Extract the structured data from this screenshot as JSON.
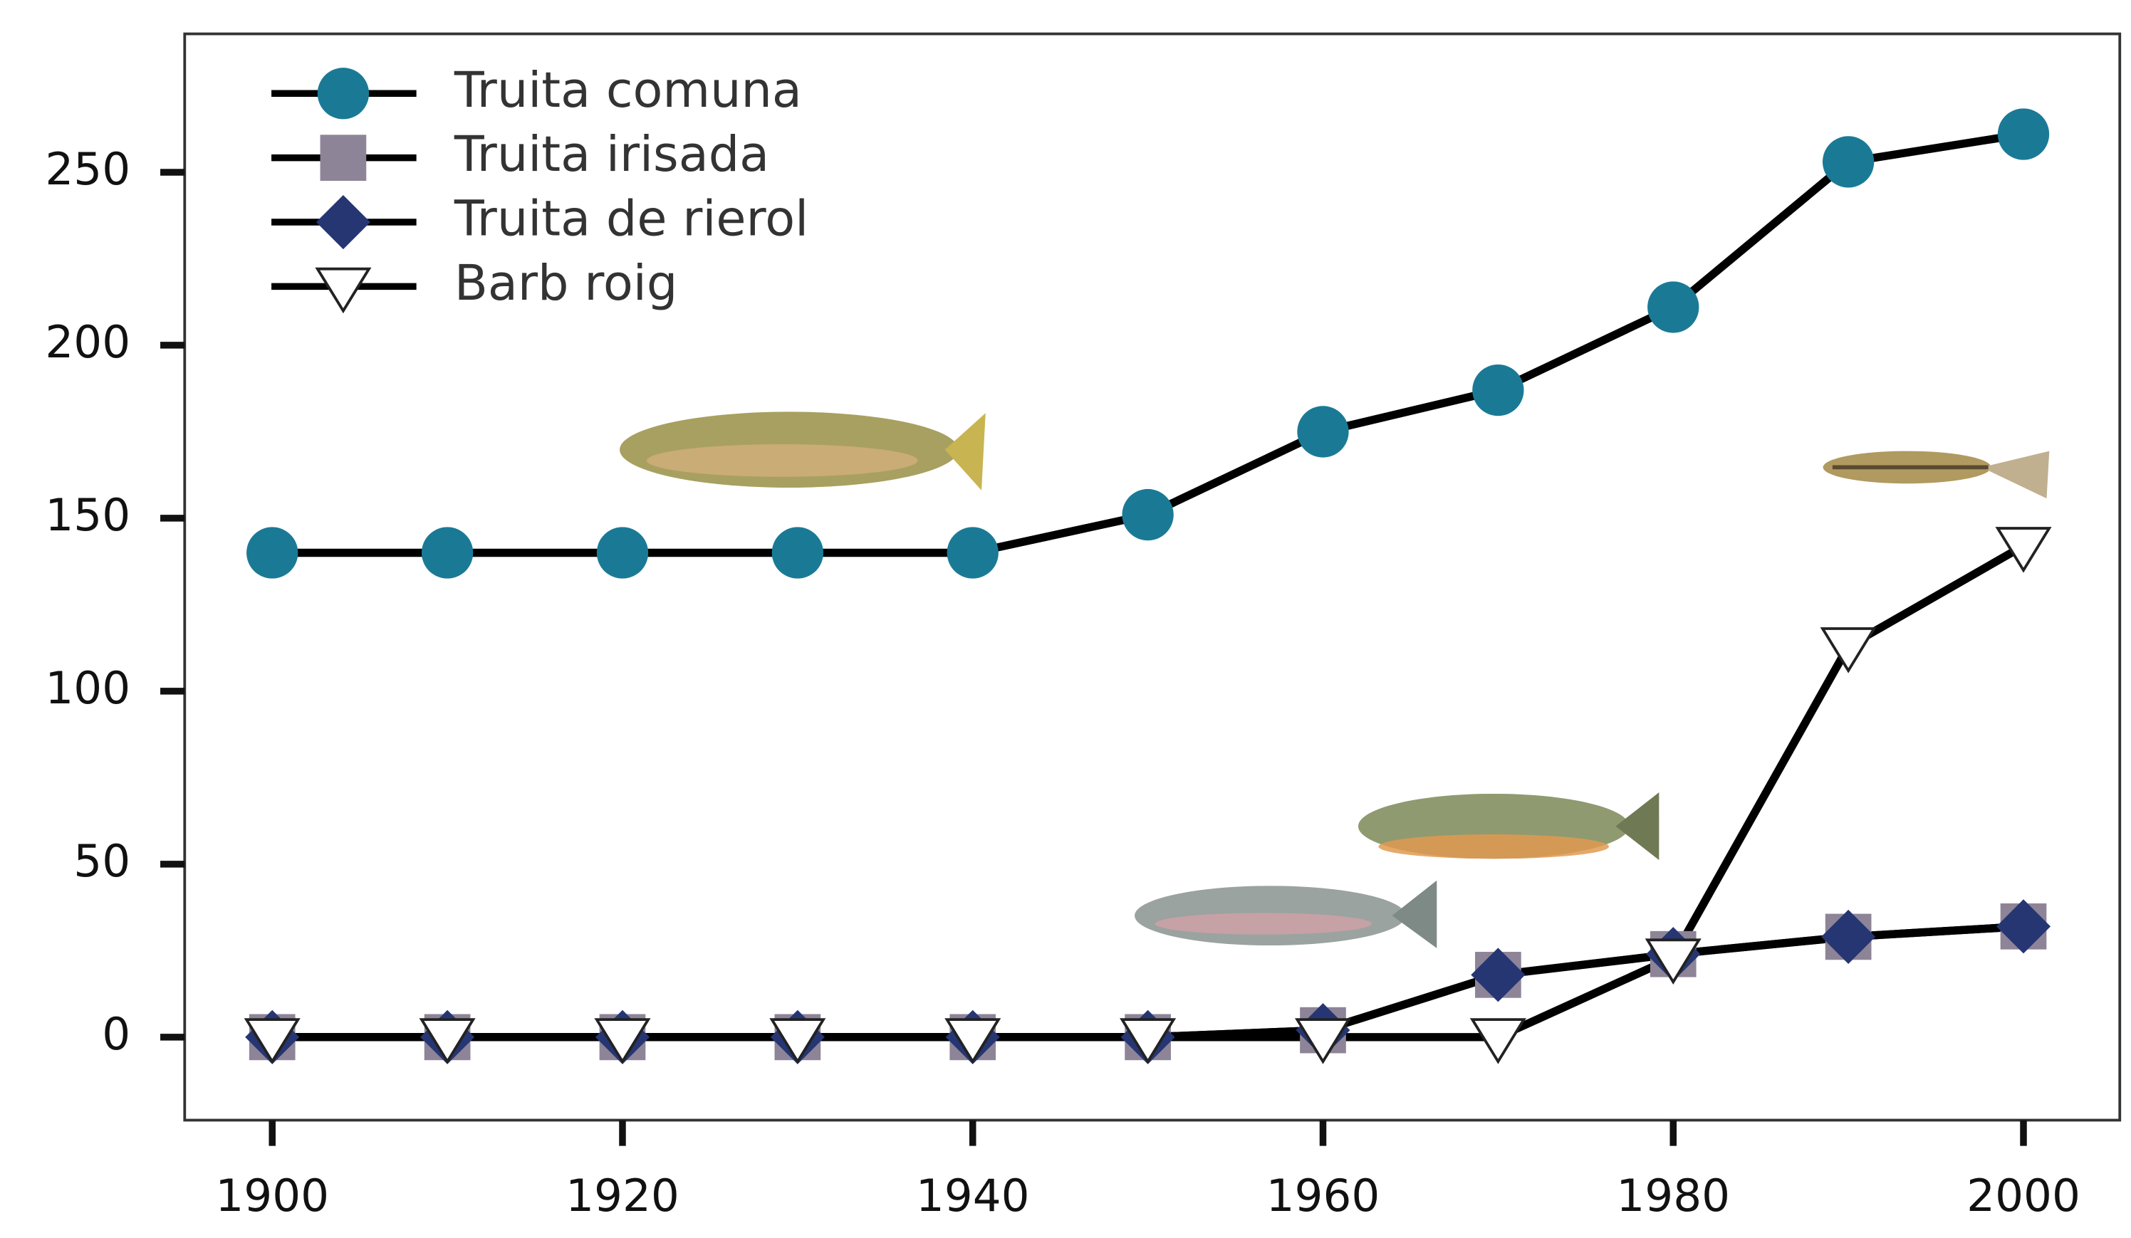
{
  "chart_data": {
    "type": "line",
    "x": [
      1900,
      1910,
      1920,
      1930,
      1940,
      1950,
      1960,
      1970,
      1980,
      1990,
      2000
    ],
    "series": [
      {
        "name": "Truita comuna",
        "color": "#1a7a96",
        "marker": "circle",
        "values": [
          140,
          140,
          140,
          140,
          140,
          151,
          175,
          187,
          211,
          253,
          261
        ]
      },
      {
        "name": "Truita irisada",
        "color": "#8e8497",
        "marker": "square",
        "values": [
          0,
          0,
          0,
          0,
          0,
          0,
          2,
          18,
          24,
          29,
          32
        ]
      },
      {
        "name": "Truita de rierol",
        "color": "#263673",
        "marker": "diamond",
        "values": [
          0,
          0,
          0,
          0,
          0,
          0,
          2,
          18,
          24,
          29,
          32
        ]
      },
      {
        "name": "Barb roig",
        "color": "#ffffff",
        "marker": "triangle-down",
        "values": [
          0,
          0,
          0,
          0,
          0,
          0,
          0,
          0,
          23,
          113,
          142
        ]
      }
    ],
    "line_color": "#000000",
    "xlim": [
      1895,
      2005.5
    ],
    "xticks": [
      1900,
      1920,
      1940,
      1960,
      1980,
      2000
    ],
    "ylim": [
      -24,
      290
    ],
    "yticks": [
      0,
      50,
      100,
      150,
      200,
      250
    ],
    "legend": "upper left"
  }
}
